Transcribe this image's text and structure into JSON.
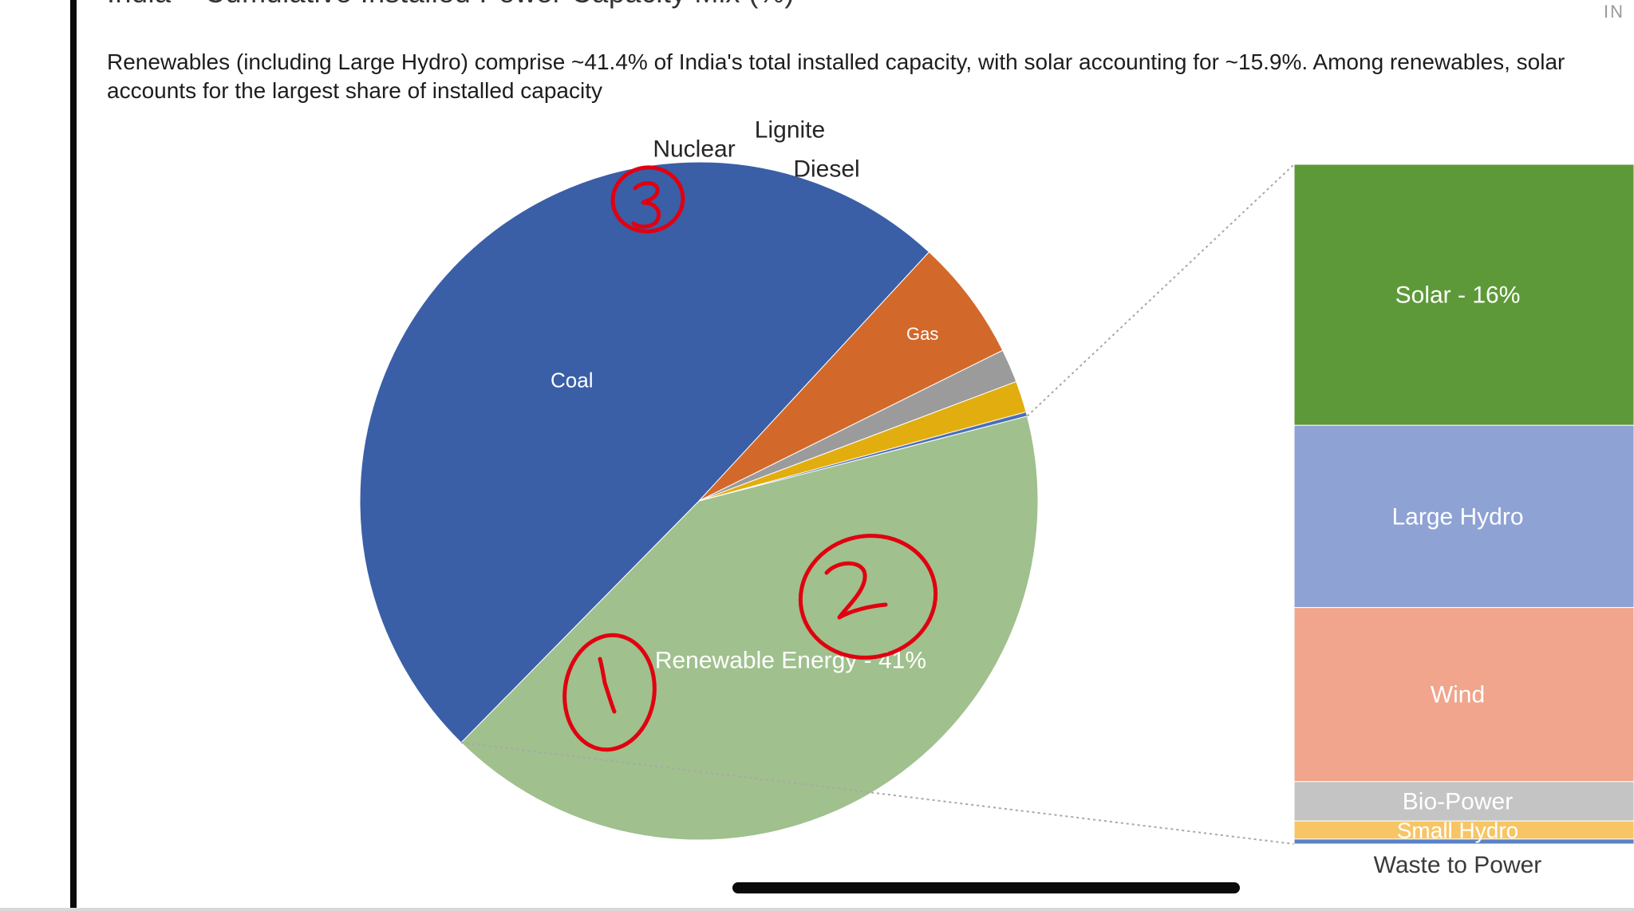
{
  "header": {
    "title_partial": "India – Cumulative Installed Power Capacity Mix (%)",
    "logo_text": "IN",
    "subtitle": "Renewables (including Large Hydro) comprise ~41.4% of India's total installed capacity, with solar accounting for ~15.9%. Among renewables, solar accounts for the largest share of installed capacity"
  },
  "chart_data": {
    "type": "pie",
    "subtype": "pie-of-bar",
    "title": "",
    "slices": [
      {
        "name": "Renewable Energy",
        "label": "Renewable Energy - 41%",
        "value": 41.4,
        "color": "#a0c08e"
      },
      {
        "name": "Coal",
        "label": "Coal",
        "value": 49.5,
        "color": "#3a5fa7"
      },
      {
        "name": "Gas",
        "label": "Gas",
        "value": 5.8,
        "color": "#d2692b"
      },
      {
        "name": "Nuclear",
        "label": "Nuclear",
        "value": 1.6,
        "color": "#9b9b9b"
      },
      {
        "name": "Lignite",
        "label": "Lignite",
        "value": 1.5,
        "color": "#e2ad0e"
      },
      {
        "name": "Diesel",
        "label": "Diesel",
        "value": 0.2,
        "color": "#4a6fb8"
      }
    ],
    "breakdown_of": "Renewable Energy",
    "breakdown": [
      {
        "name": "Solar",
        "label": "Solar - 16%",
        "value": 15.9,
        "color": "#5e9939"
      },
      {
        "name": "Large Hydro",
        "label": "Large Hydro",
        "value": 11.1,
        "color": "#8ea2d4"
      },
      {
        "name": "Wind",
        "label": "Wind",
        "value": 10.6,
        "color": "#f0a58c"
      },
      {
        "name": "Bio-Power",
        "label": "Bio-Power",
        "value": 2.4,
        "color": "#c4c4c4"
      },
      {
        "name": "Small Hydro",
        "label": "Small Hydro",
        "value": 1.1,
        "color": "#f7c565"
      },
      {
        "name": "Waste to Power",
        "label": "Waste to Power",
        "value": 0.3,
        "color": "#5b83c4"
      }
    ]
  },
  "annotations": {
    "color": "#e00010",
    "marks": [
      {
        "name": "annotation-number-3",
        "text": "3"
      },
      {
        "name": "annotation-number-2",
        "text": "2"
      },
      {
        "name": "annotation-number-1",
        "text": "1"
      }
    ]
  }
}
